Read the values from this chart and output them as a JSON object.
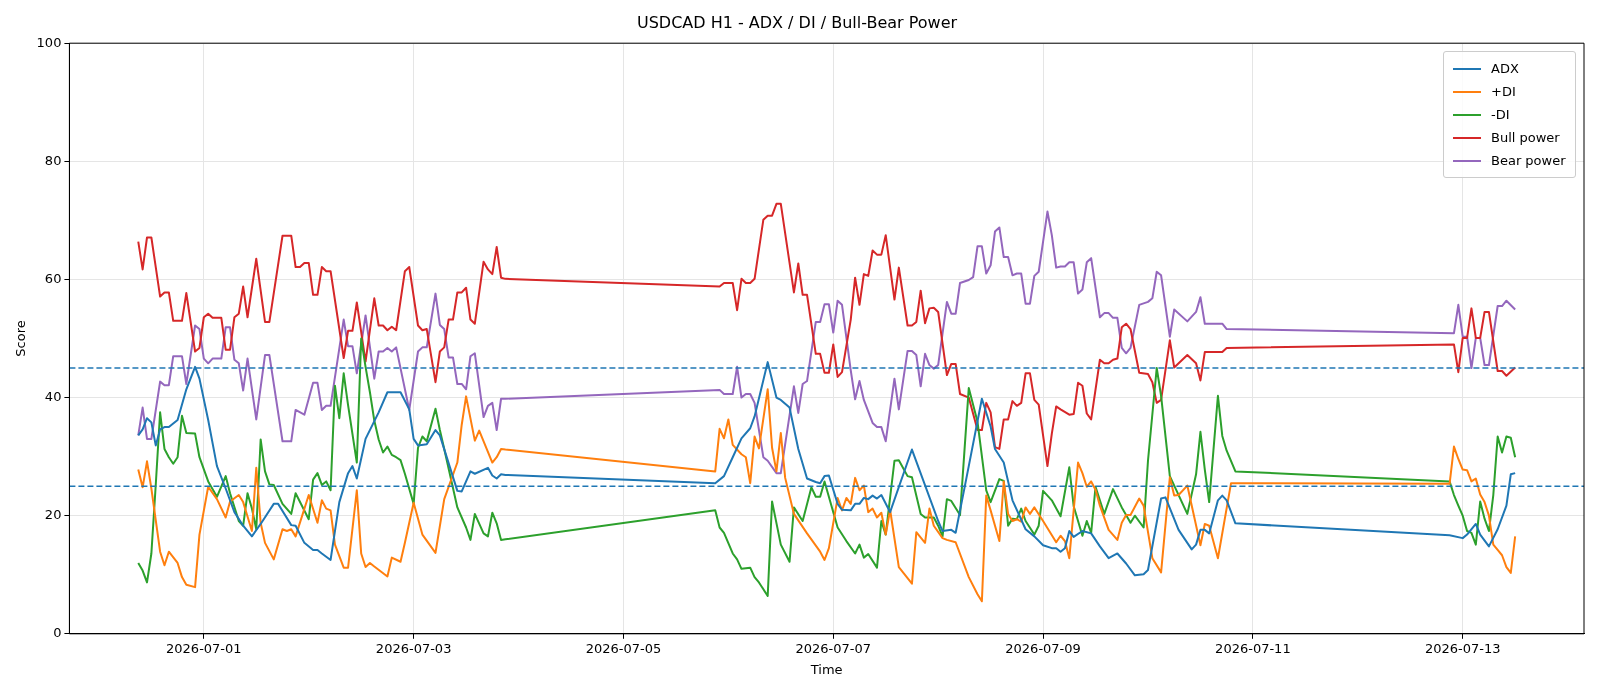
{
  "chart_data": {
    "type": "line",
    "title": "USDCAD H1 - ADX / DI / Bull-Bear Power",
    "xlabel": "Time",
    "ylabel": "Score",
    "xlim": [
      "2026-06-29T17:15",
      "2026-07-14T03:45"
    ],
    "xticks": [
      "2026-07-01",
      "2026-07-03",
      "2026-07-05",
      "2026-07-07",
      "2026-07-09",
      "2026-07-11",
      "2026-07-13"
    ],
    "ylim": [
      0,
      100
    ],
    "yticks": [
      0,
      20,
      40,
      60,
      80,
      100
    ],
    "grid": true,
    "legend": "top right",
    "ref_lines": [
      {
        "axis": "y",
        "value": 45,
        "color": "#1f77b4",
        "line_style": "dashed"
      },
      {
        "axis": "y",
        "value": 25,
        "color": "#1f77b4",
        "line_style": "dashed"
      }
    ],
    "series": [
      {
        "name": "ADX",
        "color": "#1f77b4",
        "x": [
          "2026-06-30T09:00",
          "2026-06-30T10:00",
          "2026-06-30T11:00",
          "2026-06-30T12:00",
          "2026-06-30T13:00",
          "2026-06-30T14:00",
          "2026-06-30T15:00",
          "2026-06-30T16:00",
          "2026-06-30T18:00",
          "2026-06-30T20:00",
          "2026-06-30T22:00",
          "2026-06-30T23:00",
          "2026-07-01T01:00",
          "2026-07-01T03:00",
          "2026-07-01T05:00",
          "2026-07-01T07:00",
          "2026-07-01T09:00",
          "2026-07-01T11:00",
          "2026-07-01T13:00",
          "2026-07-01T16:00",
          "2026-07-01T17:00",
          "2026-07-01T20:00",
          "2026-07-01T21:00",
          "2026-07-01T23:00",
          "2026-07-02T01:00",
          "2026-07-02T02:00",
          "2026-07-02T03:00",
          "2026-07-02T05:00",
          "2026-07-02T07:00",
          "2026-07-02T09:00",
          "2026-07-02T10:00",
          "2026-07-02T11:00",
          "2026-07-02T13:00",
          "2026-07-02T16:00",
          "2026-07-02T18:00",
          "2026-07-02T21:00",
          "2026-07-02T23:00",
          "2026-07-03T00:00",
          "2026-07-03T01:00",
          "2026-07-03T03:00",
          "2026-07-03T05:00",
          "2026-07-03T06:00",
          "2026-07-03T10:00",
          "2026-07-03T11:00",
          "2026-07-03T13:00",
          "2026-07-03T14:00",
          "2026-07-03T17:00",
          "2026-07-03T18:00",
          "2026-07-03T19:00",
          "2026-07-03T20:00",
          "2026-07-03T21:00",
          "2026-07-05T21:00",
          "2026-07-05T23:00",
          "2026-07-06T01:00",
          "2026-07-06T03:00",
          "2026-07-06T05:00",
          "2026-07-06T06:00",
          "2026-07-06T09:00",
          "2026-07-06T11:00",
          "2026-07-06T12:00",
          "2026-07-06T14:00",
          "2026-07-06T16:00",
          "2026-07-06T18:00",
          "2026-07-06T20:00",
          "2026-07-06T21:00",
          "2026-07-06T22:00",
          "2026-07-06T23:00",
          "2026-07-07T01:00",
          "2026-07-07T02:00",
          "2026-07-07T04:00",
          "2026-07-07T05:00",
          "2026-07-07T06:00",
          "2026-07-07T07:00",
          "2026-07-07T08:00",
          "2026-07-07T09:00",
          "2026-07-07T10:00",
          "2026-07-07T11:00",
          "2026-07-07T13:00",
          "2026-07-07T18:00",
          "2026-07-08T00:00",
          "2026-07-08T01:00",
          "2026-07-08T03:00",
          "2026-07-08T04:00",
          "2026-07-08T07:00",
          "2026-07-08T10:00",
          "2026-07-08T12:00",
          "2026-07-08T13:00",
          "2026-07-08T15:00",
          "2026-07-08T17:00",
          "2026-07-08T20:00",
          "2026-07-08T22:00",
          "2026-07-09T00:00",
          "2026-07-09T02:00",
          "2026-07-09T03:00",
          "2026-07-09T04:00",
          "2026-07-09T05:00",
          "2026-07-09T06:00",
          "2026-07-09T07:00",
          "2026-07-09T09:00",
          "2026-07-09T11:00",
          "2026-07-09T13:00",
          "2026-07-09T15:00",
          "2026-07-09T17:00",
          "2026-07-09T19:00",
          "2026-07-09T21:00",
          "2026-07-09T23:00",
          "2026-07-10T00:00",
          "2026-07-10T03:00",
          "2026-07-10T04:00",
          "2026-07-10T07:00",
          "2026-07-10T10:00",
          "2026-07-10T11:00",
          "2026-07-10T12:00",
          "2026-07-10T13:00",
          "2026-07-10T14:00",
          "2026-07-10T16:00",
          "2026-07-10T17:00",
          "2026-07-10T18:00",
          "2026-07-10T20:00",
          "2026-07-12T21:00",
          "2026-07-13T00:00",
          "2026-07-13T01:00",
          "2026-07-13T03:00",
          "2026-07-13T04:00",
          "2026-07-13T06:00",
          "2026-07-13T08:00",
          "2026-07-13T10:00",
          "2026-07-13T11:00",
          "2026-07-13T12:00"
        ],
        "values": [
          33.6,
          34.6,
          36.5,
          35.8,
          31.9,
          34.6,
          35,
          35,
          36.2,
          41.4,
          45.2,
          43.2,
          36.2,
          28.4,
          24.6,
          20.6,
          18.3,
          16.5,
          18.6,
          22,
          22,
          18.4,
          18.3,
          15.4,
          14.2,
          14.2,
          13.6,
          12.5,
          22.3,
          27.2,
          28.4,
          26.3,
          33,
          37.5,
          40.9,
          40.9,
          38,
          33,
          31.9,
          32.1,
          34.5,
          33.6,
          24.2,
          24.1,
          27.5,
          27.1,
          28.1,
          26.8,
          26.3,
          27,
          26.9,
          25.5,
          26.7,
          29.9,
          33.1,
          34.8,
          36.8,
          46,
          40,
          39.6,
          38.3,
          31.3,
          26.3,
          25.7,
          25.5,
          26.7,
          26.8,
          22,
          21,
          20.9,
          22,
          22,
          23,
          22.8,
          23.4,
          22.9,
          23.5,
          20.6,
          31.2,
          19.1,
          17.4,
          17.6,
          17.1,
          28.4,
          39.8,
          35.1,
          31.3,
          29,
          22.6,
          17.7,
          16.5,
          15,
          14.5,
          14.5,
          13.9,
          14.5,
          17.4,
          16.4,
          17.4,
          17,
          14.8,
          12.8,
          13.6,
          11.9,
          9.9,
          10.1,
          10.8,
          22.9,
          23.1,
          17.6,
          14.3,
          15.1,
          17.6,
          17.6,
          17,
          22.6,
          23.4,
          22.6,
          18.7,
          16.7,
          16.2,
          16.8,
          18.6,
          16.8,
          14.8,
          17.7,
          21.7,
          27,
          27.2
        ]
      },
      {
        "name": "+DI",
        "color": "#ff7f0e",
        "x": [
          "2026-06-30T09:00",
          "2026-06-30T10:00",
          "2026-06-30T11:00",
          "2026-06-30T12:00",
          "2026-06-30T14:00",
          "2026-06-30T15:00",
          "2026-06-30T16:00",
          "2026-06-30T18:00",
          "2026-06-30T19:00",
          "2026-06-30T20:00",
          "2026-06-30T22:00",
          "2026-06-30T23:00",
          "2026-07-01T01:00",
          "2026-07-01T03:00",
          "2026-07-01T05:00",
          "2026-07-01T06:00",
          "2026-07-01T08:00",
          "2026-07-01T09:00",
          "2026-07-01T11:00",
          "2026-07-01T12:00",
          "2026-07-01T13:00",
          "2026-07-01T14:00",
          "2026-07-01T16:00",
          "2026-07-01T18:00",
          "2026-07-01T19:00",
          "2026-07-01T20:00",
          "2026-07-01T21:00",
          "2026-07-02T00:00",
          "2026-07-02T02:00",
          "2026-07-02T03:00",
          "2026-07-02T04:00",
          "2026-07-02T05:00",
          "2026-07-02T06:00",
          "2026-07-02T08:00",
          "2026-07-02T09:00",
          "2026-07-02T11:00",
          "2026-07-02T12:00",
          "2026-07-02T13:00",
          "2026-07-02T14:00",
          "2026-07-02T15:00",
          "2026-07-02T18:00",
          "2026-07-02T19:00",
          "2026-07-02T21:00",
          "2026-07-02T22:00",
          "2026-07-03T00:00",
          "2026-07-03T02:00",
          "2026-07-03T05:00",
          "2026-07-03T07:00",
          "2026-07-03T10:00",
          "2026-07-03T11:00",
          "2026-07-03T12:00",
          "2026-07-03T14:00",
          "2026-07-03T15:00",
          "2026-07-03T18:00",
          "2026-07-03T19:00",
          "2026-07-03T20:00",
          "2026-07-03T21:00",
          "2026-07-05T21:00",
          "2026-07-05T22:00",
          "2026-07-05T23:00",
          "2026-07-06T00:00",
          "2026-07-06T01:00",
          "2026-07-06T03:00",
          "2026-07-06T04:00",
          "2026-07-06T05:00",
          "2026-07-06T06:00",
          "2026-07-06T07:00",
          "2026-07-06T09:00",
          "2026-07-06T10:00",
          "2026-07-06T11:00",
          "2026-07-06T12:00",
          "2026-07-06T13:00",
          "2026-07-06T15:00",
          "2026-07-06T18:00",
          "2026-07-06T21:00",
          "2026-07-06T22:00",
          "2026-07-06T23:00",
          "2026-07-07T01:00",
          "2026-07-07T02:00",
          "2026-07-07T03:00",
          "2026-07-07T04:00",
          "2026-07-07T05:00",
          "2026-07-07T06:00",
          "2026-07-07T07:00",
          "2026-07-07T08:00",
          "2026-07-07T09:00",
          "2026-07-07T10:00",
          "2026-07-07T11:00",
          "2026-07-07T12:00",
          "2026-07-07T13:00",
          "2026-07-07T15:00",
          "2026-07-07T18:00",
          "2026-07-07T19:00",
          "2026-07-07T21:00",
          "2026-07-07T22:00",
          "2026-07-07T23:00",
          "2026-07-08T01:00",
          "2026-07-08T02:00",
          "2026-07-08T04:00",
          "2026-07-08T07:00",
          "2026-07-08T09:00",
          "2026-07-08T10:00",
          "2026-07-08T11:00",
          "2026-07-08T12:00",
          "2026-07-08T14:00",
          "2026-07-08T15:00",
          "2026-07-08T16:00",
          "2026-07-08T17:00",
          "2026-07-08T18:00",
          "2026-07-08T19:00",
          "2026-07-08T20:00",
          "2026-07-08T21:00",
          "2026-07-08T22:00",
          "2026-07-09T00:00",
          "2026-07-09T03:00",
          "2026-07-09T04:00",
          "2026-07-09T05:00",
          "2026-07-09T06:00",
          "2026-07-09T08:00",
          "2026-07-09T09:00",
          "2026-07-09T10:00",
          "2026-07-09T11:00",
          "2026-07-09T12:00",
          "2026-07-09T13:00",
          "2026-07-09T15:00",
          "2026-07-09T17:00",
          "2026-07-09T18:00",
          "2026-07-09T19:00",
          "2026-07-09T20:00",
          "2026-07-09T22:00",
          "2026-07-09T23:00",
          "2026-07-10T01:00",
          "2026-07-10T03:00",
          "2026-07-10T05:00",
          "2026-07-10T06:00",
          "2026-07-10T07:00",
          "2026-07-10T09:00",
          "2026-07-10T12:00",
          "2026-07-10T13:00",
          "2026-07-10T14:00",
          "2026-07-10T16:00",
          "2026-07-10T19:00",
          "2026-07-12T21:00",
          "2026-07-12T22:00",
          "2026-07-12T23:00",
          "2026-07-13T00:00",
          "2026-07-13T01:00",
          "2026-07-13T02:00",
          "2026-07-13T03:00",
          "2026-07-13T04:00",
          "2026-07-13T05:00",
          "2026-07-13T06:00",
          "2026-07-13T07:00",
          "2026-07-13T08:00",
          "2026-07-13T09:00",
          "2026-07-13T10:00",
          "2026-07-13T11:00",
          "2026-07-13T12:00"
        ],
        "values": [
          27.8,
          24.8,
          29.2,
          24.6,
          13.9,
          11.6,
          13.9,
          12,
          9.6,
          8.3,
          7.9,
          16.8,
          24.9,
          22.8,
          19.7,
          22.4,
          23.5,
          22.3,
          17.4,
          28.1,
          18.8,
          15.4,
          12.6,
          17.7,
          17.4,
          17.7,
          16.5,
          23.5,
          18.8,
          22.6,
          21.2,
          20.9,
          15.1,
          11.2,
          11.2,
          24.3,
          13.6,
          11.3,
          12,
          11.4,
          9.7,
          12.9,
          12.2,
          15.4,
          22.2,
          16.8,
          13.7,
          22.8,
          29,
          35.4,
          40.2,
          32.7,
          34.4,
          29,
          29.9,
          31.3,
          31.2,
          27.5,
          34.7,
          33.1,
          36.3,
          32,
          30.4,
          29.9,
          25.5,
          33.4,
          31.4,
          41.4,
          31.5,
          27.5,
          34,
          26.4,
          20.3,
          17,
          13.9,
          12.5,
          14.5,
          23,
          20.9,
          23,
          22,
          26.4,
          24.3,
          25.1,
          20.6,
          21.2,
          19.7,
          20.5,
          16.8,
          21,
          11.3,
          8.5,
          17.2,
          15.4,
          21.2,
          18.3,
          16.2,
          15.9,
          15.5,
          9.6,
          6.7,
          5.5,
          23.4,
          20.9,
          15.7,
          25.8,
          20.3,
          19.1,
          19.4,
          19,
          21.4,
          20.3,
          21.4,
          19.1,
          15.5,
          16.6,
          15.7,
          12.8,
          29,
          27.2,
          24.9,
          25.8,
          24.4,
          21.7,
          17.6,
          15.9,
          18.8,
          20.1,
          20.1,
          22.9,
          21.7,
          12.8,
          10.4,
          26.5,
          23.4,
          23.5,
          25.1,
          15,
          18.6,
          18.3,
          12.8,
          25.5,
          25.4,
          31.7,
          29.6,
          27.8,
          27.7,
          25.8,
          26.3,
          23.6,
          22.3,
          20,
          15.1,
          14.2,
          13.3,
          11.3,
          10.3,
          16.5
        ]
      },
      {
        "name": "-DI",
        "color": "#2ca02c",
        "x": [
          "2026-06-30T09:00",
          "2026-06-30T10:00",
          "2026-06-30T11:00",
          "2026-06-30T12:00",
          "2026-06-30T13:00",
          "2026-06-30T14:00",
          "2026-06-30T15:00",
          "2026-06-30T16:00",
          "2026-06-30T17:00",
          "2026-06-30T18:00",
          "2026-06-30T19:00",
          "2026-06-30T20:00",
          "2026-06-30T22:00",
          "2026-06-30T23:00",
          "2026-07-01T01:00",
          "2026-07-01T03:00",
          "2026-07-01T05:00",
          "2026-07-01T06:00",
          "2026-07-01T08:00",
          "2026-07-01T09:00",
          "2026-07-01T10:00",
          "2026-07-01T11:00",
          "2026-07-01T12:00",
          "2026-07-01T13:00",
          "2026-07-01T14:00",
          "2026-07-01T15:00",
          "2026-07-01T16:00",
          "2026-07-01T18:00",
          "2026-07-01T20:00",
          "2026-07-01T21:00",
          "2026-07-02T00:00",
          "2026-07-02T01:00",
          "2026-07-02T02:00",
          "2026-07-02T03:00",
          "2026-07-02T04:00",
          "2026-07-02T05:00",
          "2026-07-02T06:00",
          "2026-07-02T07:00",
          "2026-07-02T08:00",
          "2026-07-02T09:00",
          "2026-07-02T11:00",
          "2026-07-02T12:00",
          "2026-07-02T13:00",
          "2026-07-02T14:00",
          "2026-07-02T15:00",
          "2026-07-02T16:00",
          "2026-07-02T17:00",
          "2026-07-02T18:00",
          "2026-07-02T19:00",
          "2026-07-02T20:00",
          "2026-07-02T21:00",
          "2026-07-02T22:00",
          "2026-07-03T00:00",
          "2026-07-03T01:00",
          "2026-07-03T02:00",
          "2026-07-03T03:00",
          "2026-07-03T05:00",
          "2026-07-03T06:00",
          "2026-07-03T07:00",
          "2026-07-03T10:00",
          "2026-07-03T12:00",
          "2026-07-03T13:00",
          "2026-07-03T14:00",
          "2026-07-03T16:00",
          "2026-07-03T17:00",
          "2026-07-03T18:00",
          "2026-07-03T19:00",
          "2026-07-03T20:00",
          "2026-07-03T21:00",
          "2026-07-05T21:00",
          "2026-07-05T22:00",
          "2026-07-05T23:00",
          "2026-07-06T01:00",
          "2026-07-06T02:00",
          "2026-07-06T03:00",
          "2026-07-06T05:00",
          "2026-07-06T06:00",
          "2026-07-06T07:00",
          "2026-07-06T09:00",
          "2026-07-06T10:00",
          "2026-07-06T12:00",
          "2026-07-06T14:00",
          "2026-07-06T15:00",
          "2026-07-06T17:00",
          "2026-07-06T19:00",
          "2026-07-06T20:00",
          "2026-07-06T21:00",
          "2026-07-06T22:00",
          "2026-07-07T00:00",
          "2026-07-07T01:00",
          "2026-07-07T03:00",
          "2026-07-07T05:00",
          "2026-07-07T06:00",
          "2026-07-07T07:00",
          "2026-07-07T08:00",
          "2026-07-07T10:00",
          "2026-07-07T11:00",
          "2026-07-07T12:00",
          "2026-07-07T14:00",
          "2026-07-07T15:00",
          "2026-07-07T17:00",
          "2026-07-07T18:00",
          "2026-07-07T20:00",
          "2026-07-07T21:00",
          "2026-07-07T23:00",
          "2026-07-08T00:00",
          "2026-07-08T01:00",
          "2026-07-08T02:00",
          "2026-07-08T03:00",
          "2026-07-08T05:00",
          "2026-07-08T07:00",
          "2026-07-08T09:00",
          "2026-07-08T11:00",
          "2026-07-08T12:00",
          "2026-07-08T14:00",
          "2026-07-08T15:00",
          "2026-07-08T16:00",
          "2026-07-08T17:00",
          "2026-07-08T18:00",
          "2026-07-08T19:00",
          "2026-07-08T20:00",
          "2026-07-08T22:00",
          "2026-07-08T23:00",
          "2026-07-09T00:00",
          "2026-07-09T02:00",
          "2026-07-09T04:00",
          "2026-07-09T06:00",
          "2026-07-09T07:00",
          "2026-07-09T09:00",
          "2026-07-09T10:00",
          "2026-07-09T11:00",
          "2026-07-09T12:00",
          "2026-07-09T14:00",
          "2026-07-09T16:00",
          "2026-07-09T18:00",
          "2026-07-09T20:00",
          "2026-07-09T21:00",
          "2026-07-09T23:00",
          "2026-07-10T00:00",
          "2026-07-10T02:00",
          "2026-07-10T03:00",
          "2026-07-10T05:00",
          "2026-07-10T09:00",
          "2026-07-10T11:00",
          "2026-07-10T12:00",
          "2026-07-10T13:00",
          "2026-07-10T14:00",
          "2026-07-10T16:00",
          "2026-07-10T17:00",
          "2026-07-10T18:00",
          "2026-07-10T20:00",
          "2026-07-12T21:00",
          "2026-07-12T22:00",
          "2026-07-12T23:00",
          "2026-07-13T00:00",
          "2026-07-13T01:00",
          "2026-07-13T02:00",
          "2026-07-13T03:00",
          "2026-07-13T04:00",
          "2026-07-13T05:00",
          "2026-07-13T06:00",
          "2026-07-13T07:00",
          "2026-07-13T08:00",
          "2026-07-13T09:00",
          "2026-07-13T10:00",
          "2026-07-13T11:00",
          "2026-07-13T12:00"
        ],
        "values": [
          12,
          10.7,
          8.7,
          13.6,
          25.2,
          37.5,
          31.3,
          29.9,
          28.8,
          29.9,
          36.9,
          34,
          33.9,
          29.9,
          25.8,
          23.2,
          26.7,
          23.8,
          19.1,
          18.3,
          23.8,
          21.2,
          17.7,
          32.9,
          27.5,
          25.3,
          25.2,
          22,
          20.3,
          23.8,
          19.4,
          26.1,
          27.2,
          25.2,
          25.8,
          24.3,
          42,
          36.5,
          44.1,
          38.7,
          29,
          50,
          45.2,
          40.9,
          36.1,
          32.9,
          30.7,
          31.7,
          30.3,
          29.9,
          29.4,
          27.1,
          22,
          31.5,
          33.4,
          32.6,
          38.1,
          34.5,
          31.3,
          21.4,
          18,
          15.9,
          20.3,
          17,
          16.5,
          20.5,
          18.7,
          15.9,
          16,
          20.9,
          18,
          17.1,
          13.6,
          12.6,
          11,
          11.2,
          9.6,
          8.7,
          6.4,
          22.4,
          15.1,
          12.2,
          21.4,
          19.1,
          24.8,
          23.2,
          23.2,
          25.8,
          20.6,
          18,
          15.7,
          13.6,
          15.1,
          12.9,
          13.5,
          11.2,
          19.1,
          16.8,
          29.3,
          29.4,
          26.7,
          26.5,
          20.3,
          19.7,
          19.7,
          18.3,
          16.5,
          22.8,
          22.5,
          20.1,
          41.6,
          35.9,
          24.3,
          22.3,
          26.2,
          25.9,
          18.3,
          19.5,
          19.4,
          21.2,
          19.1,
          16.8,
          18.3,
          24.2,
          22.6,
          19.9,
          28.2,
          21.6,
          16.6,
          19.1,
          17.1,
          24.9,
          20.3,
          24.5,
          21.4,
          18.8,
          20,
          18,
          29.3,
          45,
          40.3,
          26.7,
          20.3,
          27,
          34.2,
          27.8,
          22.3,
          40.3,
          33.5,
          31,
          27.5,
          25.8,
          23.5,
          21.7,
          20,
          17.4,
          17.1,
          15.1,
          22.4,
          19.5,
          17.4,
          23.5,
          33.4,
          30.7,
          33.4,
          33.2,
          29.9
        ]
      },
      {
        "name": "Bull power",
        "color": "#d62728",
        "x": [
          "2026-06-30T09:00",
          "2026-06-30T10:00",
          "2026-06-30T11:00",
          "2026-06-30T12:00",
          "2026-06-30T14:00",
          "2026-06-30T15:00",
          "2026-06-30T16:00",
          "2026-06-30T17:00",
          "2026-06-30T19:00",
          "2026-06-30T20:00",
          "2026-06-30T22:00",
          "2026-06-30T23:00",
          "2026-07-01T00:00",
          "2026-07-01T01:00",
          "2026-07-01T02:00",
          "2026-07-01T04:00",
          "2026-07-01T05:00",
          "2026-07-01T06:00",
          "2026-07-01T07:00",
          "2026-07-01T08:00",
          "2026-07-01T09:00",
          "2026-07-01T10:00",
          "2026-07-01T12:00",
          "2026-07-01T14:00",
          "2026-07-01T15:00",
          "2026-07-01T18:00",
          "2026-07-01T20:00",
          "2026-07-01T21:00",
          "2026-07-01T22:00",
          "2026-07-01T23:00",
          "2026-07-02T00:00",
          "2026-07-02T01:00",
          "2026-07-02T02:00",
          "2026-07-02T03:00",
          "2026-07-02T04:00",
          "2026-07-02T05:00",
          "2026-07-02T08:00",
          "2026-07-02T09:00",
          "2026-07-02T10:00",
          "2026-07-02T11:00",
          "2026-07-02T13:00",
          "2026-07-02T15:00",
          "2026-07-02T16:00",
          "2026-07-02T17:00",
          "2026-07-02T18:00",
          "2026-07-02T19:00",
          "2026-07-02T20:00",
          "2026-07-02T22:00",
          "2026-07-02T23:00",
          "2026-07-03T01:00",
          "2026-07-03T02:00",
          "2026-07-03T03:00",
          "2026-07-03T05:00",
          "2026-07-03T06:00",
          "2026-07-03T07:00",
          "2026-07-03T08:00",
          "2026-07-03T09:00",
          "2026-07-03T10:00",
          "2026-07-03T11:00",
          "2026-07-03T12:00",
          "2026-07-03T13:00",
          "2026-07-03T14:00",
          "2026-07-03T16:00",
          "2026-07-03T17:00",
          "2026-07-03T18:00",
          "2026-07-03T19:00",
          "2026-07-03T20:00",
          "2026-07-03T21:00",
          "2026-07-05T22:00",
          "2026-07-05T23:00",
          "2026-07-06T01:00",
          "2026-07-06T02:00",
          "2026-07-06T03:00",
          "2026-07-06T04:00",
          "2026-07-06T05:00",
          "2026-07-06T06:00",
          "2026-07-06T08:00",
          "2026-07-06T09:00",
          "2026-07-06T10:00",
          "2026-07-06T11:00",
          "2026-07-06T12:00",
          "2026-07-06T15:00",
          "2026-07-06T16:00",
          "2026-07-06T17:00",
          "2026-07-06T18:00",
          "2026-07-06T20:00",
          "2026-07-06T21:00",
          "2026-07-06T22:00",
          "2026-07-06T23:00",
          "2026-07-07T00:00",
          "2026-07-07T01:00",
          "2026-07-07T02:00",
          "2026-07-07T04:00",
          "2026-07-07T05:00",
          "2026-07-07T06:00",
          "2026-07-07T07:00",
          "2026-07-07T08:00",
          "2026-07-07T09:00",
          "2026-07-07T10:00",
          "2026-07-07T11:00",
          "2026-07-07T12:00",
          "2026-07-07T14:00",
          "2026-07-07T15:00",
          "2026-07-07T17:00",
          "2026-07-07T18:00",
          "2026-07-07T19:00",
          "2026-07-07T20:00",
          "2026-07-07T21:00",
          "2026-07-07T22:00",
          "2026-07-07T23:00",
          "2026-07-08T00:00",
          "2026-07-08T02:00",
          "2026-07-08T03:00",
          "2026-07-08T04:00",
          "2026-07-08T05:00",
          "2026-07-08T07:00",
          "2026-07-08T09:00",
          "2026-07-08T10:00",
          "2026-07-08T11:00",
          "2026-07-08T12:00",
          "2026-07-08T13:00",
          "2026-07-08T14:00",
          "2026-07-08T15:00",
          "2026-07-08T16:00",
          "2026-07-08T17:00",
          "2026-07-08T18:00",
          "2026-07-08T19:00",
          "2026-07-08T20:00",
          "2026-07-08T21:00",
          "2026-07-08T22:00",
          "2026-07-08T23:00",
          "2026-07-09T01:00",
          "2026-07-09T02:00",
          "2026-07-09T03:00",
          "2026-07-09T04:00",
          "2026-07-09T06:00",
          "2026-07-09T07:00",
          "2026-07-09T08:00",
          "2026-07-09T09:00",
          "2026-07-09T10:00",
          "2026-07-09T11:00",
          "2026-07-09T13:00",
          "2026-07-09T14:00",
          "2026-07-09T15:00",
          "2026-07-09T16:00",
          "2026-07-09T17:00",
          "2026-07-09T18:00",
          "2026-07-09T19:00",
          "2026-07-09T20:00",
          "2026-07-09T22:00",
          "2026-07-10T00:00",
          "2026-07-10T01:00",
          "2026-07-10T02:00",
          "2026-07-10T03:00",
          "2026-07-10T05:00",
          "2026-07-10T06:00",
          "2026-07-10T09:00",
          "2026-07-10T11:00",
          "2026-07-10T12:00",
          "2026-07-10T13:00",
          "2026-07-10T17:00",
          "2026-07-10T18:00",
          "2026-07-12T22:00",
          "2026-07-12T23:00",
          "2026-07-13T00:00",
          "2026-07-13T01:00",
          "2026-07-13T02:00",
          "2026-07-13T03:00",
          "2026-07-13T04:00",
          "2026-07-13T05:00",
          "2026-07-13T06:00",
          "2026-07-13T08:00",
          "2026-07-13T09:00",
          "2026-07-13T10:00",
          "2026-07-13T12:00"
        ],
        "values": [
          66.4,
          61.7,
          67.1,
          67.1,
          57.1,
          57.8,
          57.8,
          53,
          53,
          57.7,
          47.8,
          48.4,
          53.6,
          54.2,
          53.5,
          53.5,
          48.1,
          48.1,
          53.6,
          54.2,
          58.8,
          53.6,
          63.5,
          52.8,
          52.8,
          67.4,
          67.4,
          62.1,
          62.1,
          62.8,
          62.8,
          57.4,
          57.4,
          62.1,
          61.4,
          61.4,
          46.7,
          51.3,
          51.3,
          56.1,
          46.1,
          56.8,
          52.2,
          52.2,
          51.4,
          52,
          51.4,
          61.4,
          62.1,
          52.2,
          51.4,
          51.6,
          42.6,
          47.8,
          48.5,
          53.2,
          53.2,
          57.8,
          57.8,
          58.6,
          53.2,
          52.5,
          63,
          61.7,
          60.9,
          65.5,
          60.3,
          60.1,
          58.8,
          59.4,
          59.4,
          54.8,
          60.1,
          59.4,
          59.4,
          60.1,
          70.1,
          70.8,
          70.8,
          72.8,
          72.8,
          57.8,
          62.7,
          57.4,
          57.4,
          47.4,
          47.4,
          44.2,
          44.2,
          49,
          43.5,
          44.3,
          53.2,
          60.3,
          55.7,
          60.9,
          60.6,
          64.9,
          64.2,
          64.2,
          67.5,
          56.6,
          62,
          52.2,
          52.2,
          52.8,
          58.1,
          52.6,
          55.1,
          55.2,
          54.5,
          43.8,
          45.7,
          45.7,
          40.6,
          40,
          34.5,
          34.5,
          39.1,
          37.5,
          31.6,
          31.3,
          36.3,
          36.3,
          39.4,
          38.6,
          39.1,
          44.1,
          44.1,
          39.6,
          38.8,
          28.4,
          33.9,
          38.5,
          38,
          37.1,
          37.2,
          42.5,
          42,
          37.3,
          36.3,
          46.4,
          45.8,
          45.8,
          46.4,
          46.6,
          51.9,
          52.5,
          51.6,
          44.2,
          44,
          42.6,
          39.1,
          39.6,
          49.7,
          45.1,
          47.2,
          45.8,
          42.9,
          47.7,
          47.7,
          48.4,
          49,
          44.3,
          50.1,
          50.1,
          55.1,
          50.1,
          50.1,
          54.5,
          54.5,
          44.5,
          44.5,
          43.7,
          45.1
        ]
      },
      {
        "name": "Bear power",
        "color": "#9467bd",
        "x": [
          "2026-06-30T09:00",
          "2026-06-30T10:00",
          "2026-06-30T11:00",
          "2026-06-30T12:00",
          "2026-06-30T14:00",
          "2026-06-30T15:00",
          "2026-06-30T16:00",
          "2026-06-30T17:00",
          "2026-06-30T19:00",
          "2026-06-30T20:00",
          "2026-06-30T22:00",
          "2026-06-30T23:00",
          "2026-07-01T00:00",
          "2026-07-01T01:00",
          "2026-07-01T02:00",
          "2026-07-01T04:00",
          "2026-07-01T05:00",
          "2026-07-01T06:00",
          "2026-07-01T07:00",
          "2026-07-01T08:00",
          "2026-07-01T09:00",
          "2026-07-01T10:00",
          "2026-07-01T12:00",
          "2026-07-01T14:00",
          "2026-07-01T15:00",
          "2026-07-01T18:00",
          "2026-07-01T20:00",
          "2026-07-01T21:00",
          "2026-07-01T23:00",
          "2026-07-02T01:00",
          "2026-07-02T02:00",
          "2026-07-02T03:00",
          "2026-07-02T04:00",
          "2026-07-02T05:00",
          "2026-07-02T08:00",
          "2026-07-02T09:00",
          "2026-07-02T10:00",
          "2026-07-02T11:00",
          "2026-07-02T13:00",
          "2026-07-02T15:00",
          "2026-07-02T16:00",
          "2026-07-02T17:00",
          "2026-07-02T18:00",
          "2026-07-02T19:00",
          "2026-07-02T20:00",
          "2026-07-02T23:00",
          "2026-07-03T01:00",
          "2026-07-03T02:00",
          "2026-07-03T03:00",
          "2026-07-03T05:00",
          "2026-07-03T06:00",
          "2026-07-03T07:00",
          "2026-07-03T08:00",
          "2026-07-03T09:00",
          "2026-07-03T10:00",
          "2026-07-03T11:00",
          "2026-07-03T12:00",
          "2026-07-03T13:00",
          "2026-07-03T14:00",
          "2026-07-03T16:00",
          "2026-07-03T17:00",
          "2026-07-03T18:00",
          "2026-07-03T19:00",
          "2026-07-03T20:00",
          "2026-07-03T21:00",
          "2026-07-05T22:00",
          "2026-07-05T23:00",
          "2026-07-06T01:00",
          "2026-07-06T02:00",
          "2026-07-06T03:00",
          "2026-07-06T04:00",
          "2026-07-06T05:00",
          "2026-07-06T06:00",
          "2026-07-06T08:00",
          "2026-07-06T09:00",
          "2026-07-06T11:00",
          "2026-07-06T12:00",
          "2026-07-06T15:00",
          "2026-07-06T16:00",
          "2026-07-06T17:00",
          "2026-07-06T18:00",
          "2026-07-06T20:00",
          "2026-07-06T21:00",
          "2026-07-06T22:00",
          "2026-07-06T23:00",
          "2026-07-07T00:00",
          "2026-07-07T01:00",
          "2026-07-07T02:00",
          "2026-07-07T04:00",
          "2026-07-07T05:00",
          "2026-07-07T06:00",
          "2026-07-07T07:00",
          "2026-07-07T09:00",
          "2026-07-07T10:00",
          "2026-07-07T11:00",
          "2026-07-07T12:00",
          "2026-07-07T14:00",
          "2026-07-07T15:00",
          "2026-07-07T17:00",
          "2026-07-07T18:00",
          "2026-07-07T19:00",
          "2026-07-07T20:00",
          "2026-07-07T21:00",
          "2026-07-07T22:00",
          "2026-07-07T23:00",
          "2026-07-08T00:00",
          "2026-07-08T02:00",
          "2026-07-08T03:00",
          "2026-07-08T04:00",
          "2026-07-08T05:00",
          "2026-07-08T07:00",
          "2026-07-08T08:00",
          "2026-07-08T09:00",
          "2026-07-08T10:00",
          "2026-07-08T11:00",
          "2026-07-08T12:00",
          "2026-07-08T13:00",
          "2026-07-08T14:00",
          "2026-07-08T15:00",
          "2026-07-08T16:00",
          "2026-07-08T17:00",
          "2026-07-08T18:00",
          "2026-07-08T19:00",
          "2026-07-08T20:00",
          "2026-07-08T21:00",
          "2026-07-08T22:00",
          "2026-07-08T23:00",
          "2026-07-09T01:00",
          "2026-07-09T02:00",
          "2026-07-09T03:00",
          "2026-07-09T04:00",
          "2026-07-09T05:00",
          "2026-07-09T06:00",
          "2026-07-09T07:00",
          "2026-07-09T08:00",
          "2026-07-09T09:00",
          "2026-07-09T10:00",
          "2026-07-09T11:00",
          "2026-07-09T13:00",
          "2026-07-09T14:00",
          "2026-07-09T15:00",
          "2026-07-09T16:00",
          "2026-07-09T17:00",
          "2026-07-09T18:00",
          "2026-07-09T19:00",
          "2026-07-09T20:00",
          "2026-07-09T22:00",
          "2026-07-10T00:00",
          "2026-07-10T01:00",
          "2026-07-10T02:00",
          "2026-07-10T03:00",
          "2026-07-10T05:00",
          "2026-07-10T06:00",
          "2026-07-10T09:00",
          "2026-07-10T11:00",
          "2026-07-10T12:00",
          "2026-07-10T13:00",
          "2026-07-10T17:00",
          "2026-07-10T18:00",
          "2026-07-12T22:00",
          "2026-07-12T23:00",
          "2026-07-13T00:00",
          "2026-07-13T01:00",
          "2026-07-13T02:00",
          "2026-07-13T03:00",
          "2026-07-13T04:00",
          "2026-07-13T05:00",
          "2026-07-13T06:00",
          "2026-07-13T08:00",
          "2026-07-13T09:00",
          "2026-07-13T10:00",
          "2026-07-13T12:00"
        ],
        "values": [
          33.6,
          38.3,
          33,
          33,
          42.7,
          42.1,
          42.1,
          47,
          47,
          42.3,
          52.2,
          51.6,
          46.6,
          45.8,
          46.6,
          46.6,
          51.9,
          51.9,
          46.4,
          45.8,
          41.2,
          46.6,
          36.3,
          47.2,
          47.2,
          32.6,
          32.6,
          37.9,
          37.1,
          42.5,
          42.5,
          37.9,
          38.6,
          38.6,
          53.2,
          48.7,
          48.7,
          44.1,
          53.9,
          43.2,
          47.8,
          47.8,
          48.4,
          47.8,
          48.5,
          37.9,
          47.8,
          48.5,
          48.5,
          57.6,
          52.3,
          51.6,
          46.8,
          46.8,
          42.3,
          42.3,
          41.4,
          47,
          47.5,
          36.7,
          38.6,
          39.1,
          34.5,
          39.8,
          39.8,
          41.3,
          40.6,
          40.6,
          45.2,
          40,
          40.6,
          40.6,
          39.1,
          29.9,
          29.3,
          27.2,
          27.2,
          41.9,
          37.4,
          42.3,
          42.8,
          52.8,
          52.8,
          55.8,
          55.8,
          51,
          56.4,
          55.7,
          44.6,
          39.7,
          42.8,
          39.6,
          35.7,
          35,
          35,
          32.6,
          43.2,
          38,
          47.9,
          47.9,
          47.2,
          41.9,
          47.4,
          45.5,
          44.9,
          45.5,
          56.2,
          54.2,
          54.2,
          59.4,
          59.9,
          60.4,
          65.6,
          65.6,
          61,
          62.4,
          68.1,
          68.8,
          63.8,
          63.8,
          60.7,
          61,
          61,
          55.9,
          55.9,
          60.6,
          61.3,
          71.5,
          67.5,
          62,
          62.2,
          62.2,
          62.9,
          62.9,
          57.6,
          58.3,
          62.9,
          63.6,
          53.6,
          54.3,
          54.3,
          53.5,
          53.5,
          48.4,
          47.5,
          48.4,
          55.7,
          56.2,
          56.8,
          61.3,
          60.7,
          50.3,
          54.9,
          52.9,
          54.5,
          57,
          52.5,
          52.5,
          51.6,
          50.9,
          55.7,
          50.3,
          50.3,
          45,
          50.1,
          50.1,
          45.5,
          45.5,
          55.5,
          55.5,
          56.4,
          54.9
        ]
      }
    ]
  }
}
